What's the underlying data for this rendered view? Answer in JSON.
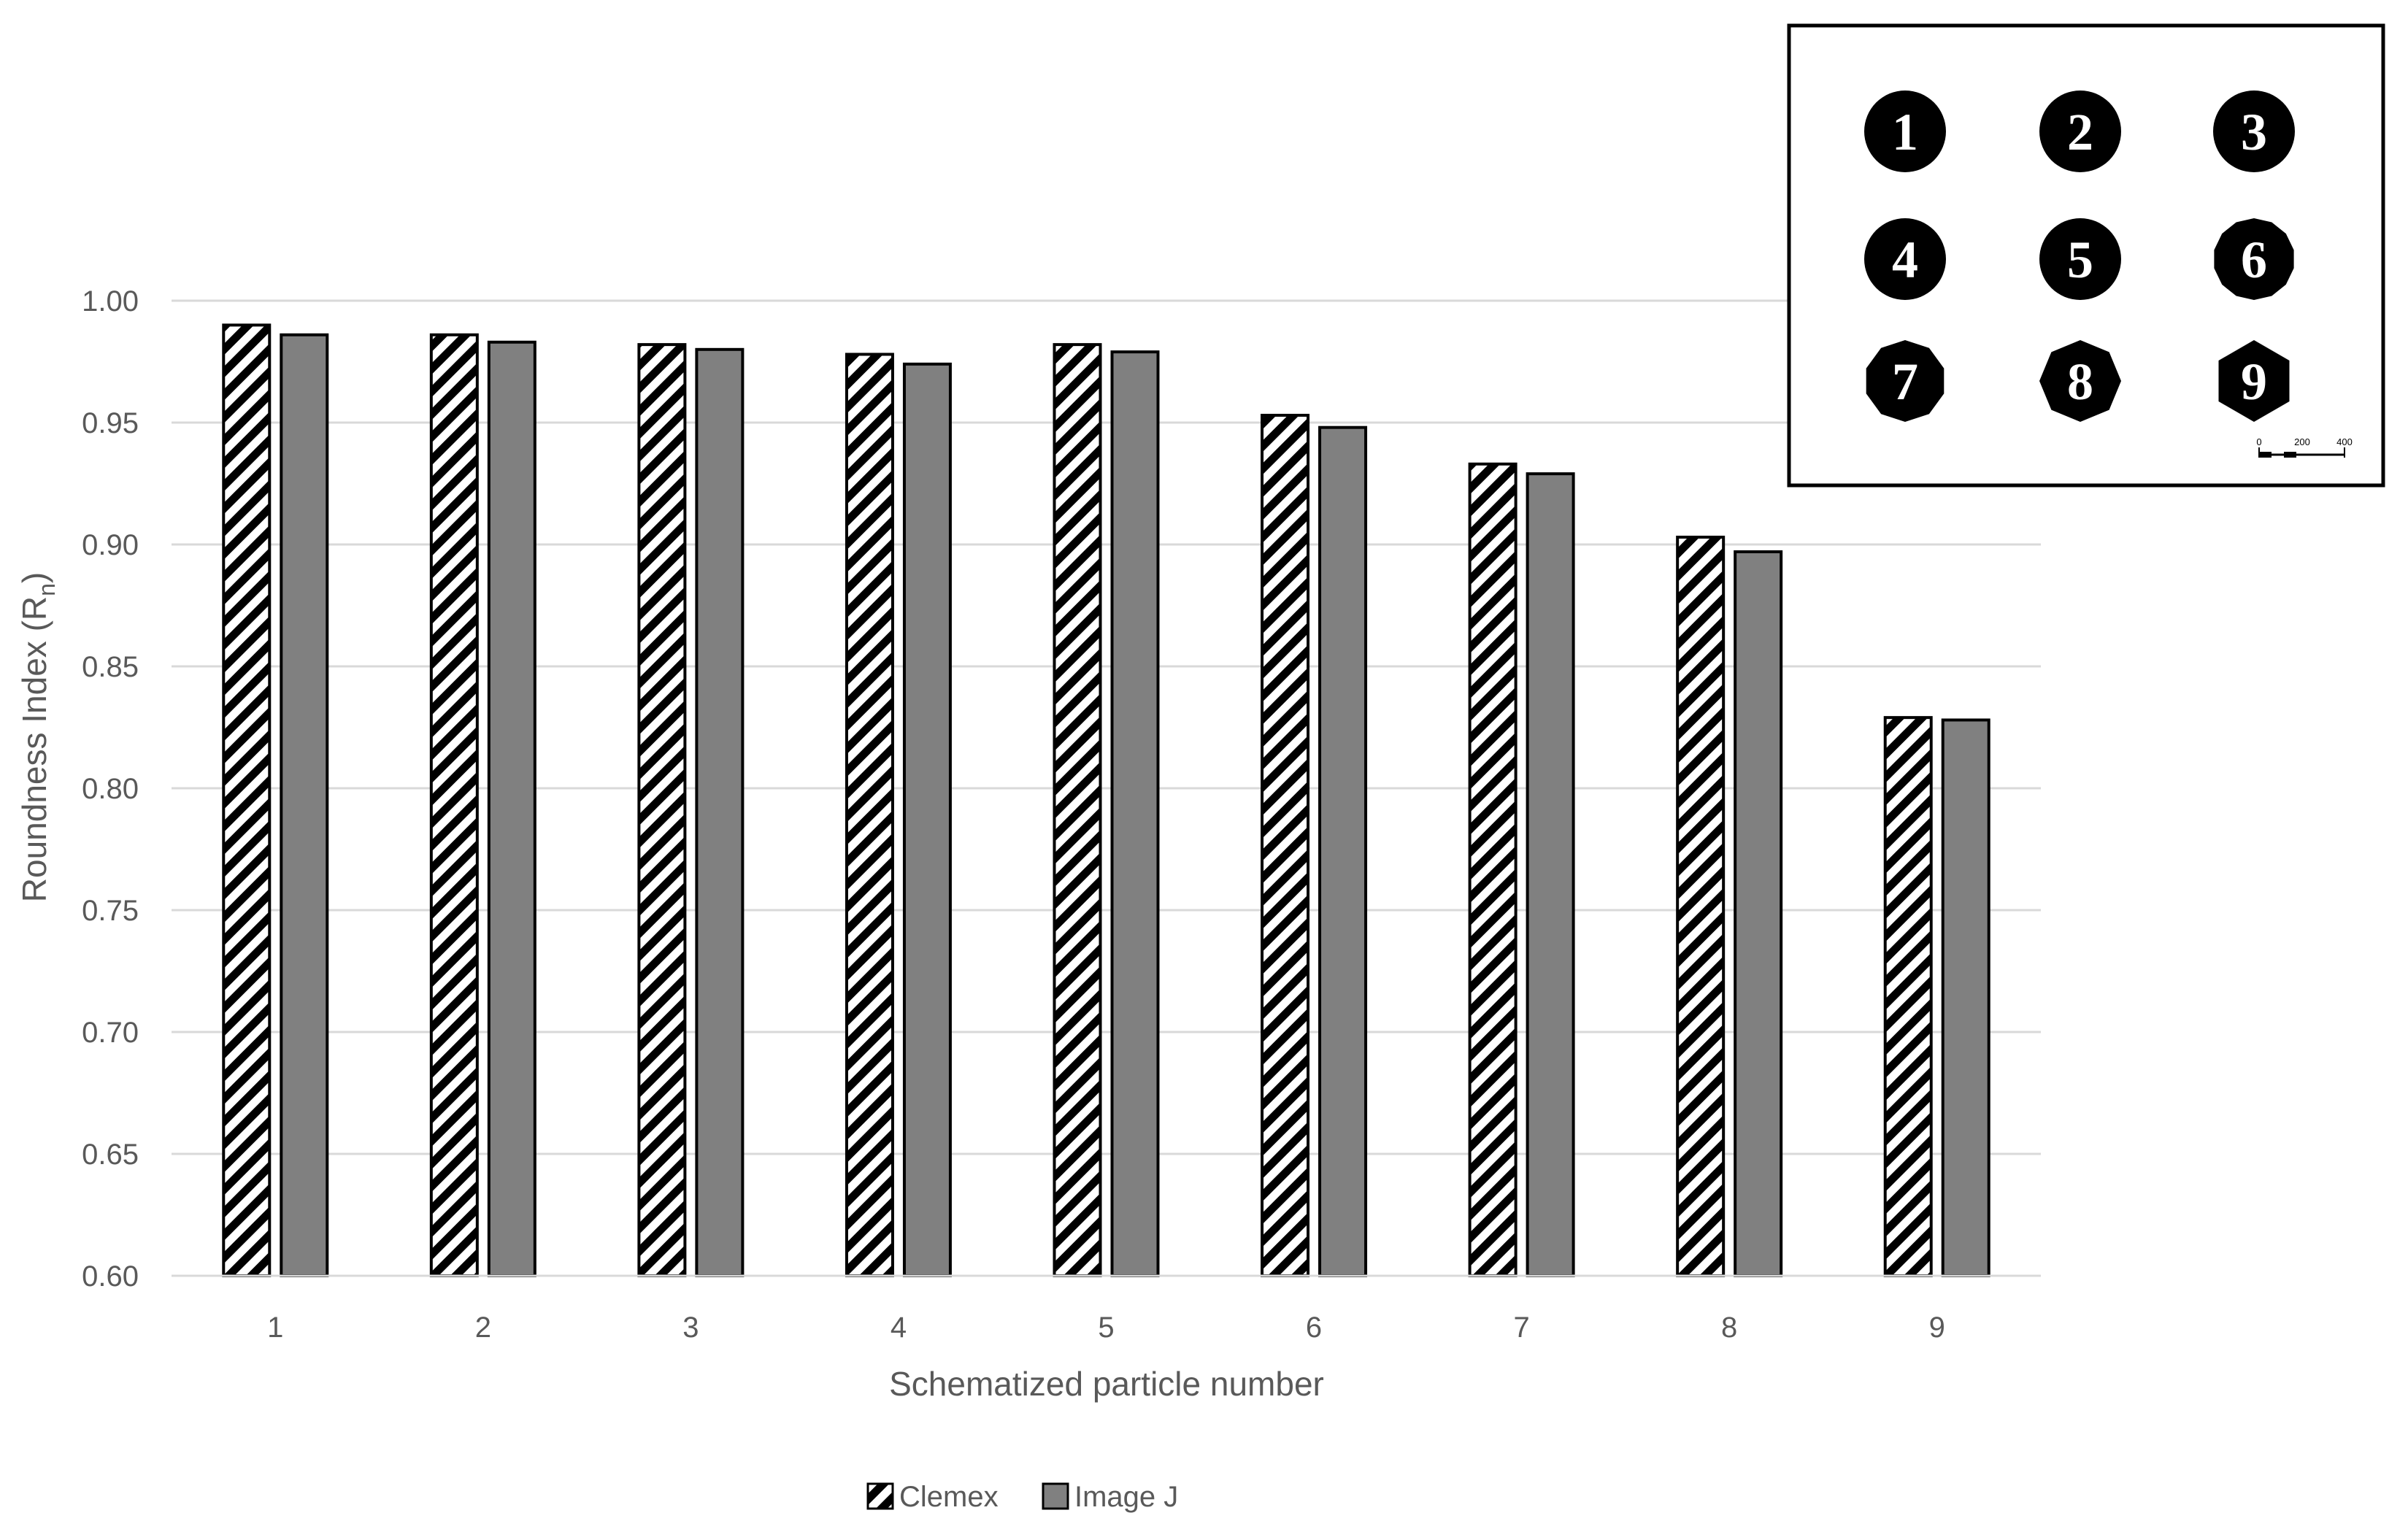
{
  "chart_data": {
    "type": "bar",
    "categories": [
      "1",
      "2",
      "3",
      "4",
      "5",
      "6",
      "7",
      "8",
      "9"
    ],
    "series": [
      {
        "name": "Clemex",
        "values": [
          0.99,
          0.986,
          0.982,
          0.978,
          0.982,
          0.953,
          0.933,
          0.903,
          0.829
        ],
        "fill": "hatch"
      },
      {
        "name": "Image J",
        "values": [
          0.986,
          0.983,
          0.98,
          0.974,
          0.979,
          0.948,
          0.929,
          0.897,
          0.828
        ],
        "fill": "#808080"
      }
    ],
    "xlabel": "Schematized particle number",
    "ylabel": "Roundness Index (R",
    "ylabel_subscript": "n",
    "ylabel_suffix": ")",
    "ylim": [
      0.6,
      1.0
    ],
    "yticks": [
      "0.60",
      "0.65",
      "0.70",
      "0.75",
      "0.80",
      "0.85",
      "0.90",
      "0.95",
      "1.00"
    ],
    "grid": true,
    "legend_position": "bottom"
  },
  "inset": {
    "particles": [
      "1",
      "2",
      "3",
      "4",
      "5",
      "6",
      "7",
      "8",
      "9"
    ],
    "scale_labels": [
      "0",
      "200",
      "400"
    ]
  },
  "colors": {
    "bar_outline": "#000000",
    "image_j_fill": "#808080",
    "gridline": "#d9d9d9",
    "text": "#595959"
  }
}
